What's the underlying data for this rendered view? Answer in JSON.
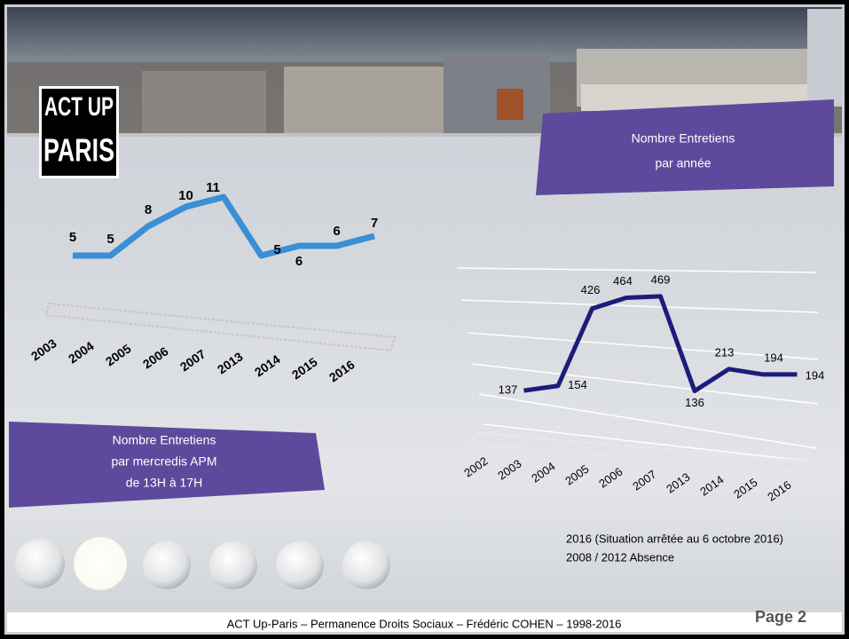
{
  "chart_data": [
    {
      "type": "line",
      "title": [
        "Nombre Entretiens",
        "par mercredis APM",
        "de 13H à 17H"
      ],
      "categories": [
        "2003",
        "2004",
        "2005",
        "2006",
        "2007",
        "2013",
        "2014",
        "2015",
        "2016"
      ],
      "values": [
        5,
        5,
        8,
        10,
        11,
        5,
        6,
        6,
        7
      ],
      "color": "#3a8fd6"
    },
    {
      "type": "line",
      "title": [
        "Nombre Entretiens",
        "par année"
      ],
      "categories": [
        "2002",
        "2003",
        "2004",
        "2005",
        "2006",
        "2007",
        "2013",
        "2014",
        "2015",
        "2016"
      ],
      "values": [
        null,
        137,
        154,
        426,
        464,
        469,
        136,
        213,
        194,
        194
      ],
      "color": "#1c1c7a",
      "grid": true
    }
  ],
  "logo": [
    "ACT UP",
    "PARIS"
  ],
  "notes": [
    "2016 (Situation arrêtée au 6 octobre 2016)",
    "2008 / 2012 Absence"
  ],
  "footer": "ACT Up-Paris  –  Permanence Droits Sociaux  –  Frédéric COHEN – 1998-2016",
  "page": "Page 2"
}
